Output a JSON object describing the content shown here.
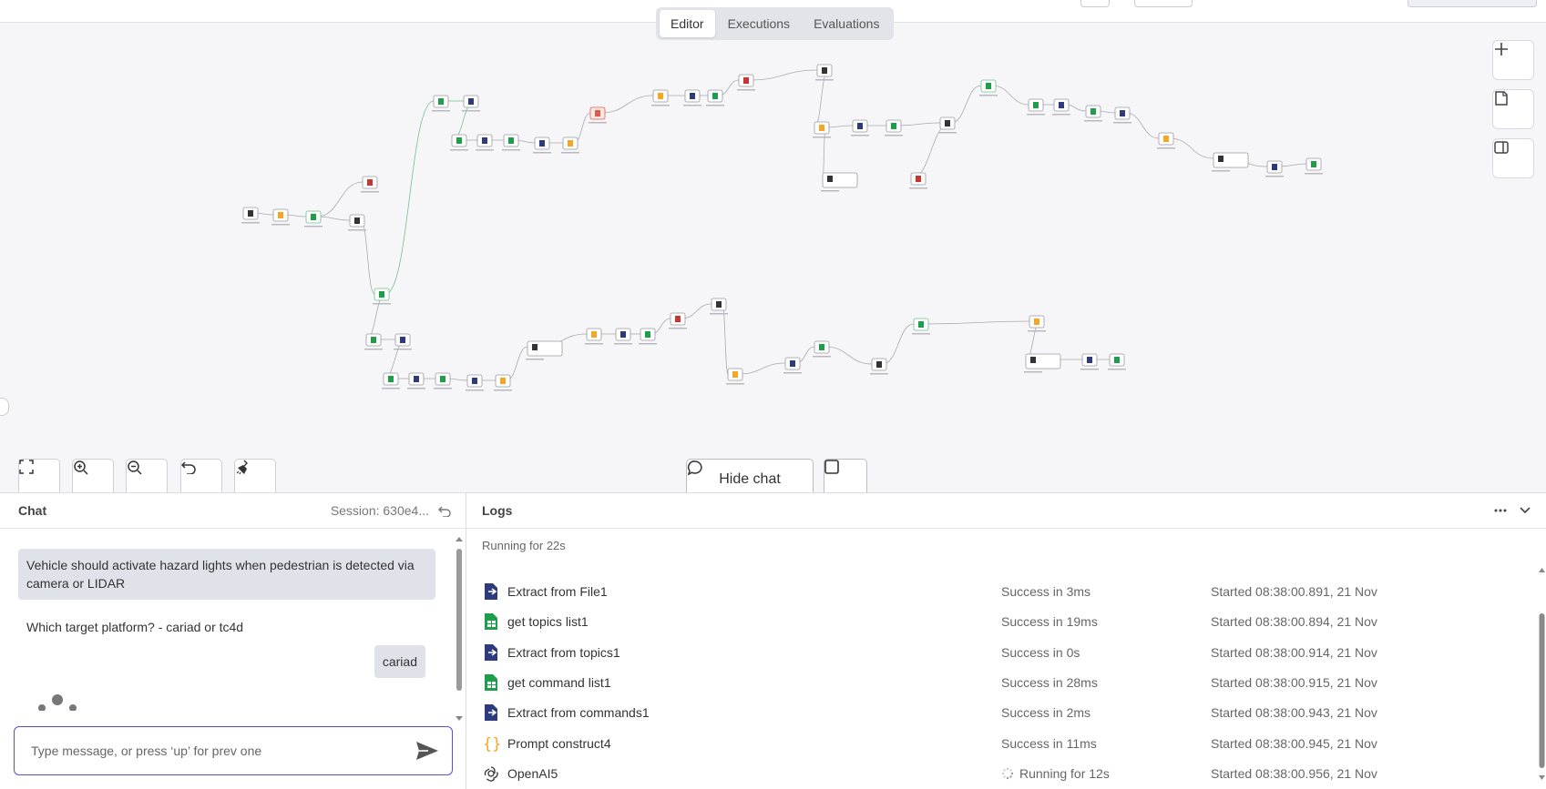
{
  "header": {
    "tabs": [
      {
        "label": "Editor",
        "active": true
      },
      {
        "label": "Executions",
        "active": false
      },
      {
        "label": "Evaluations",
        "active": false
      }
    ]
  },
  "canvas": {
    "controls": {
      "hide_chat_label": "Hide chat"
    },
    "side_icons": [
      "plus-icon",
      "note-icon",
      "panel-icon"
    ],
    "zoom_icons": [
      "fit-view-icon",
      "zoom-in-icon",
      "zoom-out-icon",
      "reset-zoom-icon",
      "tidy-up-icon"
    ]
  },
  "chat": {
    "title": "Chat",
    "session": "Session: 630e4...",
    "messages": [
      {
        "role": "user",
        "text": "Vehicle should activate hazard lights when pedestrian is detected via camera or LIDAR"
      },
      {
        "role": "bot",
        "text": "Which target platform? - cariad or tc4d"
      },
      {
        "role": "user",
        "text": "cariad"
      }
    ],
    "input_placeholder": "Type message, or press ‘up’ for prev one"
  },
  "logs": {
    "title": "Logs",
    "running_label": "Running for 22s",
    "rows": [
      {
        "icon": "extract-file-icon",
        "name": "Extract from File1",
        "status": "Success in 3ms",
        "started": "Started 08:38:00.891, 21 Nov"
      },
      {
        "icon": "sheets-icon",
        "name": "get topics list1",
        "status": "Success in 19ms",
        "started": "Started 08:38:00.894, 21 Nov"
      },
      {
        "icon": "extract-file-icon",
        "name": "Extract from topics1",
        "status": "Success in 0s",
        "started": "Started 08:38:00.914, 21 Nov"
      },
      {
        "icon": "sheets-icon",
        "name": "get command list1",
        "status": "Success in 28ms",
        "started": "Started 08:38:00.915, 21 Nov"
      },
      {
        "icon": "extract-file-icon",
        "name": "Extract from commands1",
        "status": "Success in 2ms",
        "started": "Started 08:38:00.943, 21 Nov"
      },
      {
        "icon": "braces-icon",
        "name": "Prompt construct4",
        "status": "Success in 11ms",
        "started": "Started 08:38:00.945, 21 Nov"
      },
      {
        "icon": "openai-icon",
        "name": "OpenAI5",
        "status": "Running for 12s",
        "started": "Started 08:38:00.956, 21 Nov"
      }
    ]
  },
  "colors": {
    "accent": "#5b4fc9",
    "sheets_green": "#1e9e4a",
    "extract_navy": "#2d3a7c",
    "code_orange": "#f5a623",
    "error_red": "#e05a4a"
  }
}
